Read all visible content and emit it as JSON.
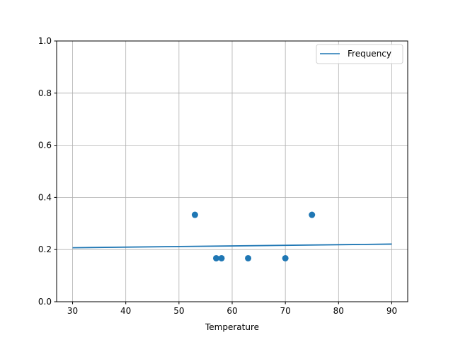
{
  "chart_data": {
    "type": "scatter",
    "title": "",
    "xlabel": "Temperature",
    "ylabel": "",
    "xlim": [
      27,
      93
    ],
    "ylim": [
      0,
      1.0
    ],
    "xticks": [
      30,
      40,
      50,
      60,
      70,
      80,
      90
    ],
    "yticks": [
      0.0,
      0.2,
      0.4,
      0.6,
      0.8,
      1.0
    ],
    "xtick_labels": [
      "30",
      "40",
      "50",
      "60",
      "70",
      "80",
      "90"
    ],
    "ytick_labels": [
      "0.0",
      "0.2",
      "0.4",
      "0.6",
      "0.8",
      "1.0"
    ],
    "grid": true,
    "legend": {
      "placement": "top-right",
      "entries": [
        "Frequency"
      ]
    },
    "color": "#1f77b4",
    "line": {
      "name": "Frequency",
      "x": [
        30,
        90
      ],
      "y": [
        0.207,
        0.221
      ]
    },
    "points": {
      "x": [
        53,
        57,
        58,
        63,
        70,
        75
      ],
      "y": [
        0.3333,
        0.1667,
        0.1667,
        0.1667,
        0.1667,
        0.3333
      ]
    }
  }
}
